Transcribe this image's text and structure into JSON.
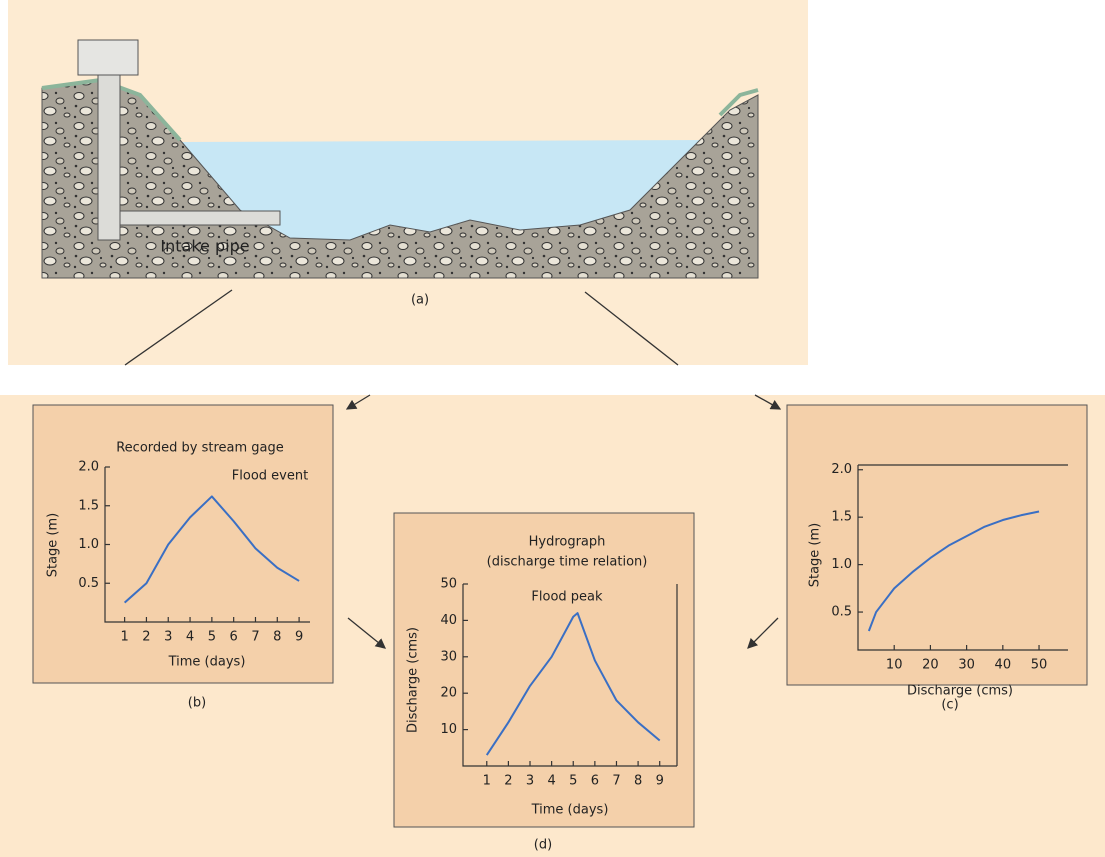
{
  "panel_a": {
    "label": "Intake pipe",
    "caption": "(a)"
  },
  "chart_data": [
    {
      "type": "line",
      "title": "Recorded by stream gage",
      "annotation": "Flood event",
      "caption": "(b)",
      "x_label": "Time (days)",
      "y_label": "Stage (m)",
      "x": [
        1,
        2,
        3,
        4,
        5,
        6,
        7,
        8,
        9
      ],
      "values": [
        0.25,
        0.5,
        1.0,
        1.35,
        1.62,
        1.3,
        0.95,
        0.7,
        0.53
      ],
      "color": "#3a6fc4",
      "xlim": [
        0.1,
        9.5
      ],
      "xticks": [
        1,
        2,
        3,
        4,
        5,
        6,
        7,
        8,
        9
      ],
      "ylim": [
        0,
        2.0
      ],
      "yticks": [
        0.5,
        {
          "value": 1,
          "label": "1.0"
        },
        1.5,
        {
          "value": 2,
          "label": "2.0"
        }
      ]
    },
    {
      "type": "line",
      "caption": "(c)",
      "x_label": "Discharge (cms)",
      "y_label": "Stage (m)",
      "x": [
        3,
        5,
        10,
        15,
        20,
        25,
        30,
        35,
        40,
        45,
        50
      ],
      "values": [
        0.3,
        0.5,
        0.75,
        0.92,
        1.07,
        1.2,
        1.3,
        1.4,
        1.47,
        1.52,
        1.56
      ],
      "color": "#3a6fc4",
      "xlim": [
        0,
        58
      ],
      "xticks": [
        10,
        20,
        30,
        40,
        50
      ],
      "ylim": [
        0.1,
        2.05
      ],
      "yticks": [
        0.5,
        {
          "value": 1,
          "label": "1.0"
        },
        1.5,
        {
          "value": 2,
          "label": "2.0"
        }
      ]
    },
    {
      "type": "line",
      "title": "Hydrograph",
      "subtitle": "(discharge time relation)",
      "annotation": "Flood peak",
      "caption": "(d)",
      "x_label": "Time (days)",
      "y_label": "Discharge (cms)",
      "x": [
        1,
        2,
        3,
        4,
        5,
        5.2,
        6,
        7,
        8,
        9
      ],
      "values": [
        3,
        12,
        22,
        30,
        41,
        42,
        29,
        18,
        12,
        7
      ],
      "color": "#3a6fc4",
      "xlim": [
        -0.1,
        9.8
      ],
      "xticks": [
        1,
        2,
        3,
        4,
        5,
        6,
        7,
        8,
        9
      ],
      "ylim": [
        0,
        50
      ],
      "yticks": [
        10,
        20,
        30,
        40,
        50
      ]
    }
  ]
}
